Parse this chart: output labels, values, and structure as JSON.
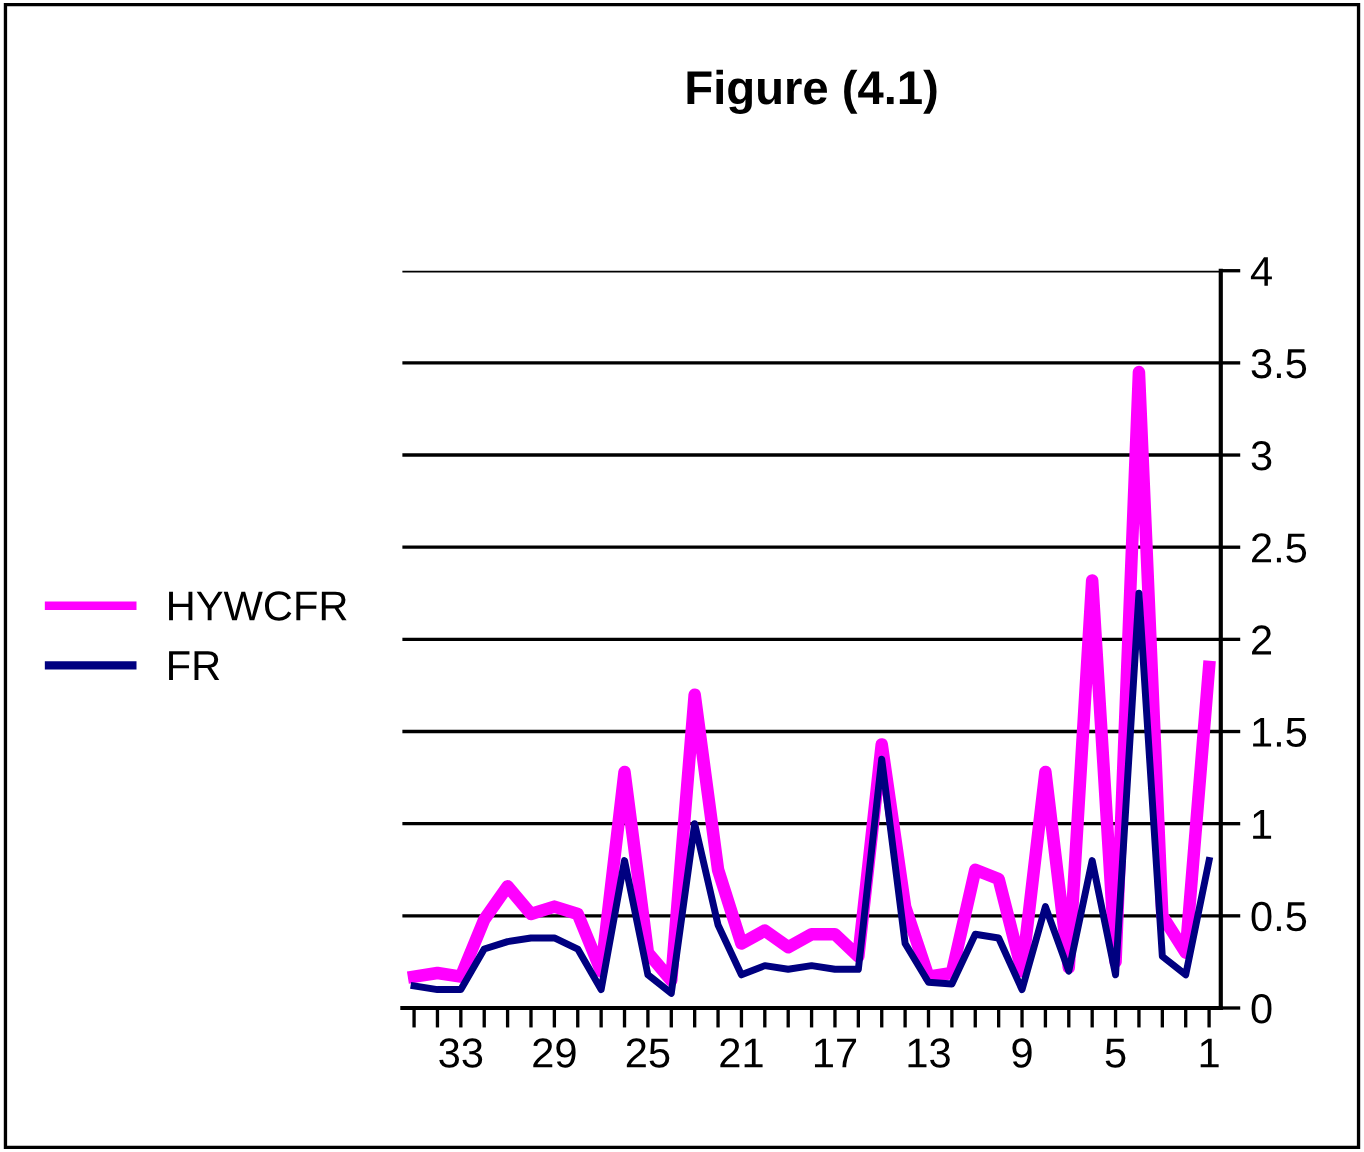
{
  "chart_data": {
    "type": "line",
    "title": "Figure (4.1)",
    "categories": [
      null,
      null,
      "33",
      null,
      null,
      null,
      "29",
      null,
      null,
      null,
      "25",
      null,
      null,
      null,
      "21",
      null,
      null,
      null,
      "17",
      null,
      null,
      null,
      "13",
      null,
      null,
      null,
      "9",
      null,
      null,
      null,
      "5",
      null,
      null,
      null,
      "1"
    ],
    "series": [
      {
        "name": "HYWCFR",
        "color": "#ff00ff",
        "values": [
          0.17,
          0.19,
          0.17,
          0.48,
          0.66,
          0.51,
          0.55,
          0.51,
          0.2,
          1.28,
          0.3,
          0.15,
          1.7,
          0.75,
          0.35,
          0.42,
          0.33,
          0.4,
          0.4,
          0.28,
          1.43,
          0.55,
          0.17,
          0.19,
          0.75,
          0.7,
          0.2,
          1.28,
          0.22,
          2.32,
          0.25,
          3.45,
          0.5,
          0.3,
          1.85
        ]
      },
      {
        "name": "FR",
        "color": "#000080",
        "values": [
          0.12,
          0.1,
          0.1,
          0.32,
          0.36,
          0.38,
          0.38,
          0.32,
          0.1,
          0.8,
          0.18,
          0.08,
          1.0,
          0.45,
          0.18,
          0.23,
          0.21,
          0.23,
          0.21,
          0.21,
          1.35,
          0.35,
          0.14,
          0.13,
          0.4,
          0.38,
          0.1,
          0.55,
          0.2,
          0.8,
          0.18,
          2.25,
          0.28,
          0.18,
          0.8
        ]
      }
    ],
    "ylim": [
      0,
      4
    ],
    "yticks": [
      0,
      0.5,
      1,
      1.5,
      2,
      2.5,
      3,
      3.5,
      4
    ],
    "grid": "y",
    "legend": "left",
    "marker": "none",
    "line_style": "solid"
  }
}
